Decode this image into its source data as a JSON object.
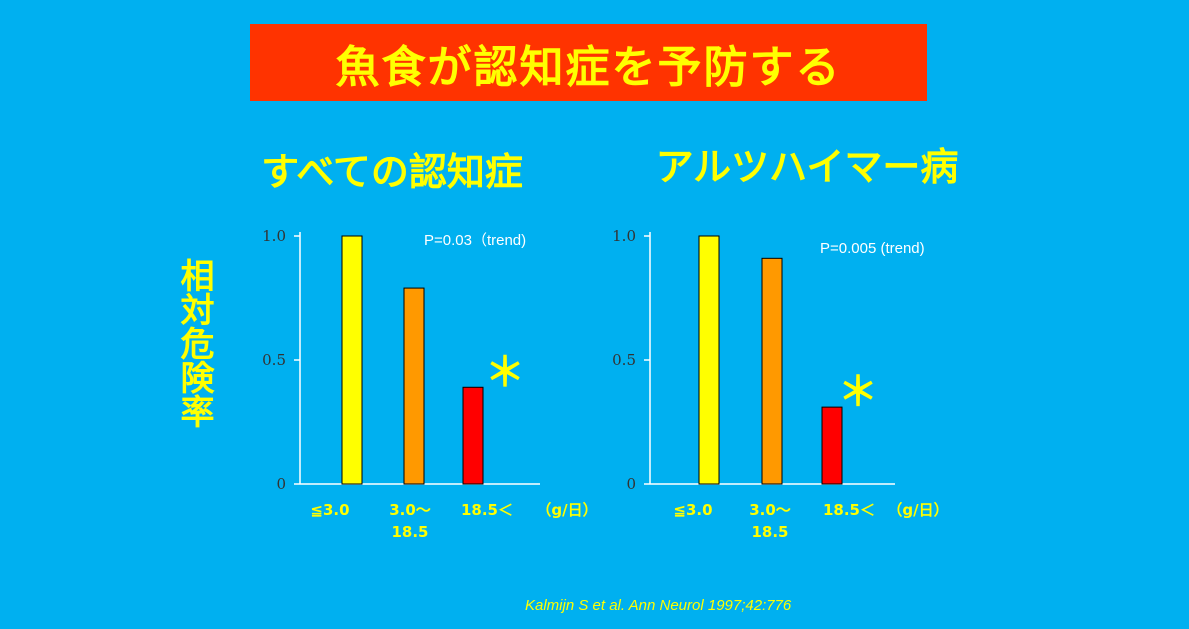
{
  "slide": {
    "title": "魚食が認知症を予防する",
    "y_axis_label": "相対危険率",
    "citation": "Kalmijn S et al. Ann Neurol 1997;42:776",
    "colors": {
      "background": "#00b0f0",
      "banner": "#ff3300",
      "accent": "#ffff00"
    }
  },
  "chart_data": [
    {
      "type": "bar",
      "title": "すべての認知症",
      "annotation": "P=0.03（trend)",
      "significance_mark": "＊",
      "categories": [
        "≦3.0",
        "3.0～\n18.5",
        "18.5＜"
      ],
      "unit_label": "（g/日）",
      "values": [
        1.0,
        0.79,
        0.39
      ],
      "bar_colors": [
        "#ffff00",
        "#ff9900",
        "#ff0000"
      ],
      "yticks": [
        "0",
        "0.5",
        "1.0"
      ],
      "ylim": [
        0,
        1.0
      ]
    },
    {
      "type": "bar",
      "title": "アルツハイマー病",
      "annotation": "P=0.005 (trend)",
      "significance_mark": "＊",
      "categories": [
        "≦3.0",
        "3.0～\n18.5",
        "18.5＜"
      ],
      "unit_label": "（g/日）",
      "values": [
        1.0,
        0.91,
        0.31
      ],
      "bar_colors": [
        "#ffff00",
        "#ff9900",
        "#ff0000"
      ],
      "yticks": [
        "0",
        "0.5",
        "1.0"
      ],
      "ylim": [
        0,
        1.0
      ]
    }
  ]
}
